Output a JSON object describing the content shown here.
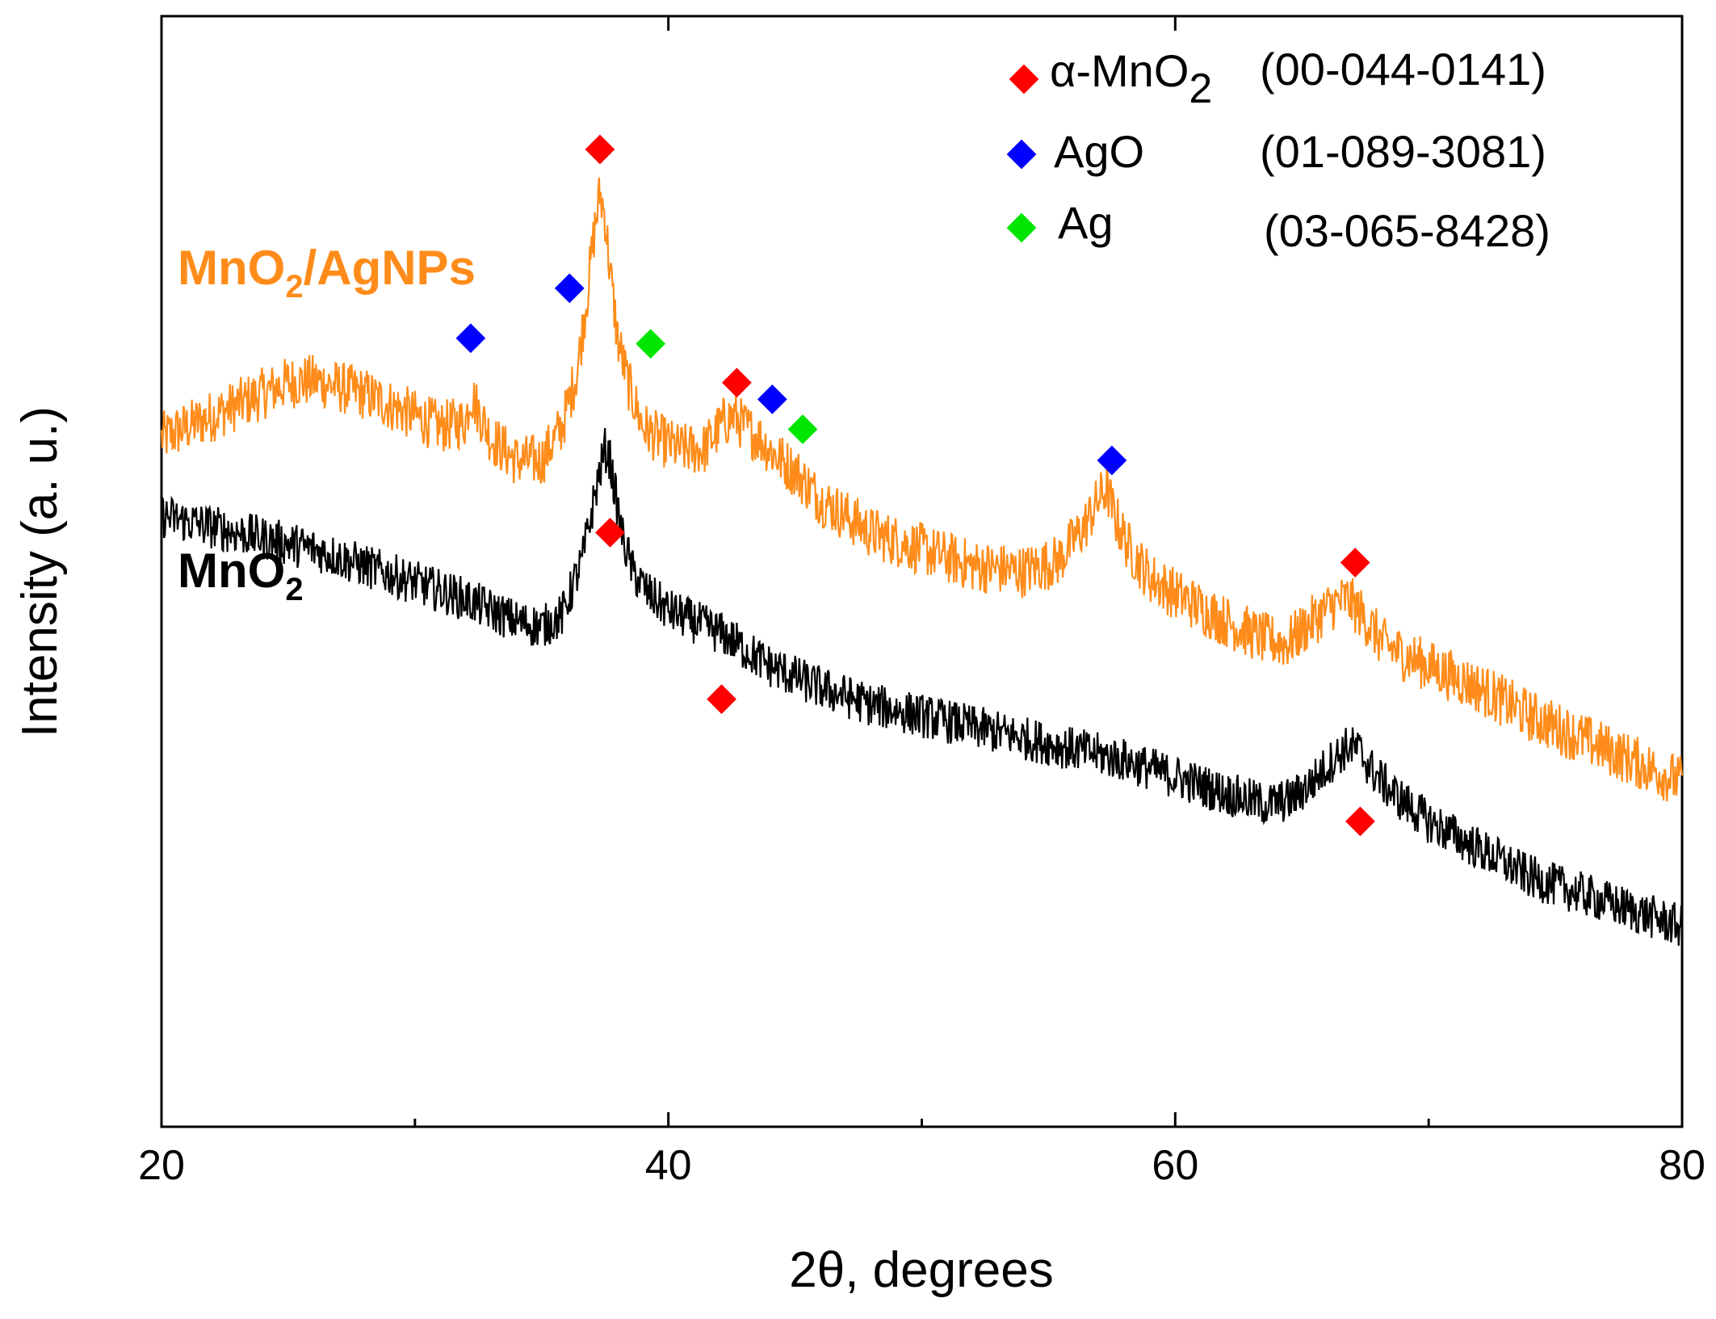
{
  "chart_data": {
    "type": "line",
    "title": "",
    "xlabel": "2θ, degrees",
    "ylabel": "Intensity (a. u.)",
    "xlim": [
      20,
      80
    ],
    "ylim": [
      0,
      100
    ],
    "xticks": [
      20,
      40,
      60,
      80
    ],
    "xticks_minor": [
      30,
      50,
      70
    ],
    "grid": false,
    "series": [
      {
        "id": "mno2_agnps",
        "name": "MnO2/AgNPs",
        "label_main": "MnO",
        "label_sub": "2",
        "label_rest": "/AgNPs",
        "color": "#FF8C1A",
        "noise": 2.4,
        "x": [
          20,
          22,
          24,
          25,
          26,
          28,
          30,
          31,
          32,
          32.2,
          32.6,
          33,
          34,
          35,
          35.8,
          36.4,
          36.8,
          37.1,
          37.3,
          37.5,
          37.7,
          38,
          38.4,
          39,
          39.6,
          40.4,
          41.4,
          42.2,
          42.6,
          43,
          43.6,
          44.2,
          45,
          46,
          48,
          50,
          52,
          54,
          55.4,
          56.4,
          57,
          57.3,
          57.6,
          58.2,
          59,
          60,
          62,
          63.4,
          64.4,
          65.4,
          66.2,
          66.8,
          67.4,
          68.2,
          69,
          70,
          72,
          74,
          76,
          78,
          80
        ],
        "y": [
          62,
          64,
          66,
          67,
          67.2,
          66,
          64,
          63,
          63.5,
          66,
          64,
          62,
          60,
          60,
          63,
          68,
          75,
          81,
          84,
          82,
          77,
          71,
          67,
          63,
          62,
          61,
          61,
          63.5,
          64,
          63,
          62,
          60.5,
          59,
          56.5,
          53.5,
          52,
          50.5,
          50,
          51,
          54,
          56.5,
          57.5,
          55,
          52,
          49.5,
          48,
          45.5,
          44,
          43.5,
          45.5,
          47,
          47.5,
          46,
          43.5,
          42.5,
          41.5,
          39.5,
          37,
          35,
          33,
          31
        ]
      },
      {
        "id": "mno2",
        "name": "MnO2",
        "label_main": "MnO",
        "label_sub": "2",
        "label_rest": "",
        "color": "#000000",
        "noise": 2.0,
        "x": [
          20,
          22,
          24,
          26,
          28,
          30,
          32,
          33,
          34,
          35,
          35.8,
          36.6,
          37.2,
          37.5,
          37.7,
          37.9,
          38.2,
          38.6,
          39.2,
          40,
          41,
          42,
          42.4,
          43,
          44,
          46,
          48,
          50,
          52,
          54,
          56,
          58,
          60,
          62,
          63.6,
          64.6,
          65.4,
          66.2,
          66.8,
          67.2,
          67.8,
          68.6,
          70,
          72,
          74,
          76,
          78,
          80
        ],
        "y": [
          55,
          54,
          53,
          52,
          50.5,
          49,
          47.5,
          46.5,
          45.5,
          45,
          46,
          51,
          58,
          61,
          60,
          57,
          53,
          50,
          48,
          46.5,
          45.5,
          44.5,
          44,
          43,
          41.5,
          39.5,
          38,
          37,
          36,
          35,
          34,
          33,
          31.5,
          30,
          29,
          29.5,
          31,
          33,
          34.2,
          34,
          32,
          30,
          27.5,
          25,
          22.5,
          21,
          19.5,
          18
        ]
      }
    ],
    "peak_markers": [
      {
        "phase": "alpha-MnO2",
        "series": "mno2_agnps",
        "x": 37.3,
        "y": 88
      },
      {
        "phase": "AgO",
        "series": "mno2_agnps",
        "x": 32.2,
        "y": 71
      },
      {
        "phase": "AgO",
        "series": "mno2_agnps",
        "x": 36.1,
        "y": 75.5
      },
      {
        "phase": "Ag",
        "series": "mno2_agnps",
        "x": 39.3,
        "y": 70.5
      },
      {
        "phase": "alpha-MnO2",
        "series": "mno2_agnps",
        "x": 42.7,
        "y": 67
      },
      {
        "phase": "AgO",
        "series": "mno2_agnps",
        "x": 44.1,
        "y": 65.5
      },
      {
        "phase": "Ag",
        "series": "mno2_agnps",
        "x": 45.3,
        "y": 62.8
      },
      {
        "phase": "AgO",
        "series": "mno2_agnps",
        "x": 57.5,
        "y": 60
      },
      {
        "phase": "alpha-MnO2",
        "series": "mno2_agnps",
        "x": 67.1,
        "y": 50.8
      },
      {
        "phase": "alpha-MnO2",
        "series": "mno2",
        "x": 37.7,
        "y": 53.5
      },
      {
        "phase": "alpha-MnO2",
        "series": "mno2",
        "x": 42.1,
        "y": 38.5
      },
      {
        "phase": "alpha-MnO2",
        "series": "mno2",
        "x": 67.3,
        "y": 27.5
      }
    ],
    "legend": {
      "position": "top-right",
      "entries": [
        {
          "phase": "alpha-MnO2",
          "prefix": "α-MnO",
          "sub": "2",
          "card": "(00-044-0141)",
          "color": "#FF0000"
        },
        {
          "phase": "AgO",
          "prefix": "AgO",
          "sub": "",
          "card": "(01-089-3081)",
          "color": "#0000FF"
        },
        {
          "phase": "Ag",
          "prefix": "Ag",
          "sub": "",
          "card": "(03-065-8428)",
          "color": "#00E600"
        }
      ]
    }
  }
}
